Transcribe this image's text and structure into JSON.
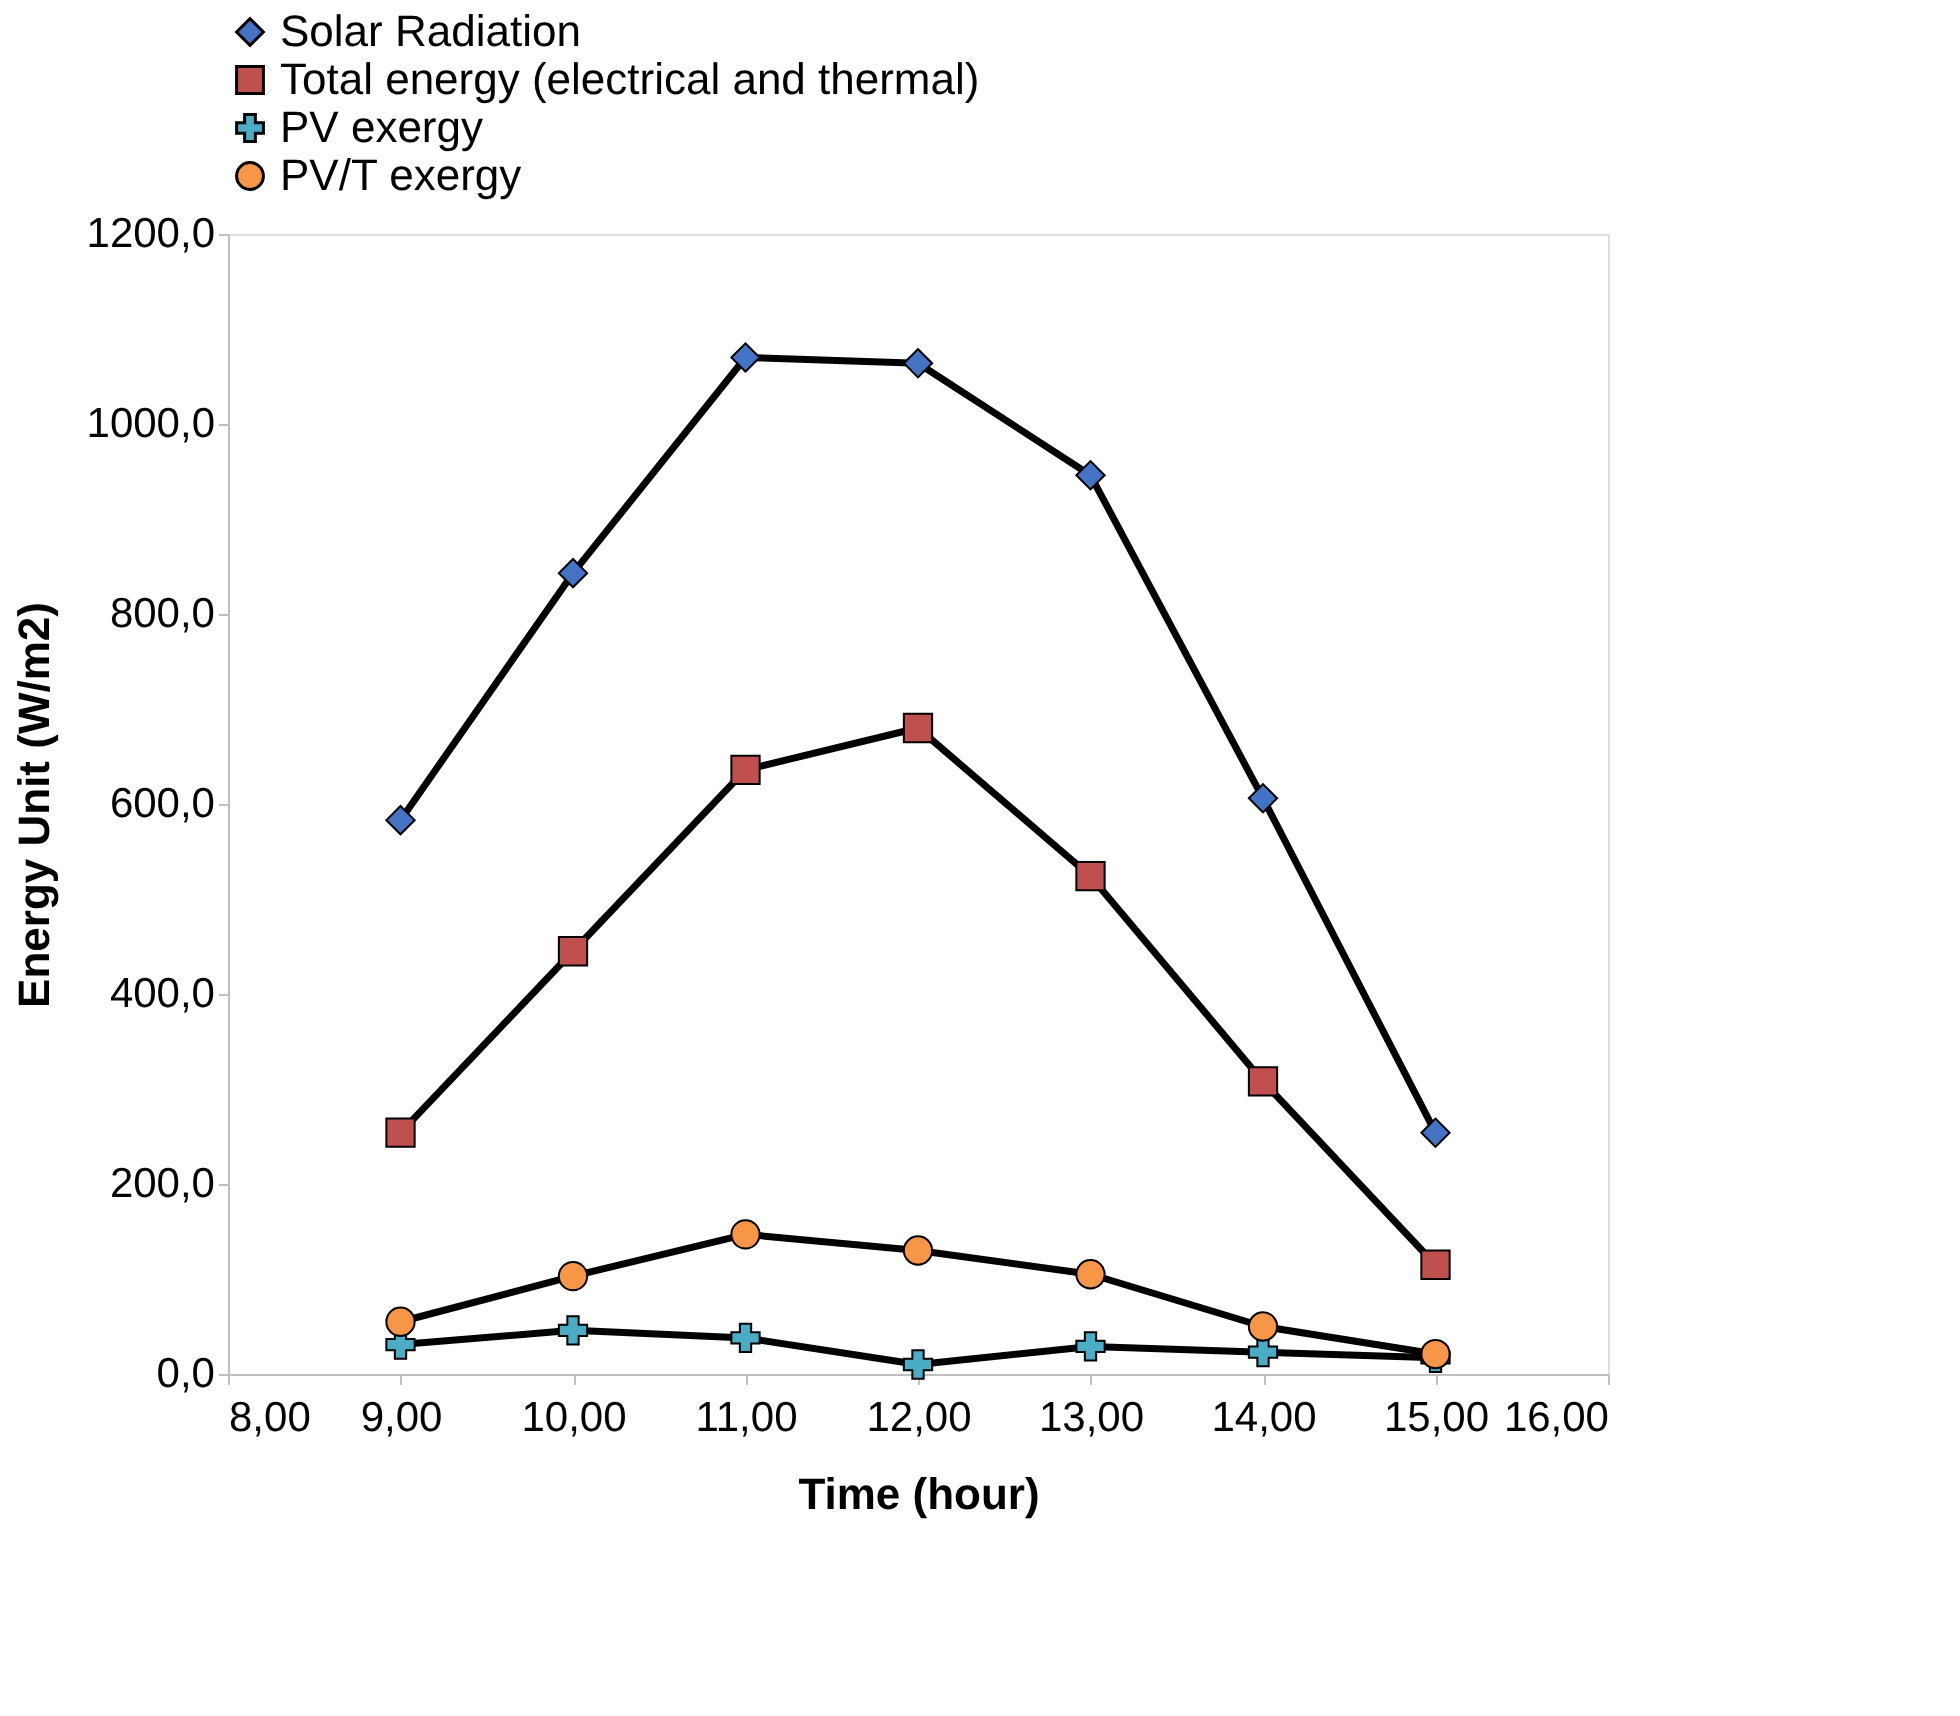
{
  "chart_data": {
    "type": "line",
    "xlabel": "Time (hour)",
    "ylabel": "Energy Unit (W/m2)",
    "x": [
      9,
      10,
      11,
      12,
      13,
      14,
      15
    ],
    "series": [
      {
        "name": "Solar Radiation",
        "color": "#4472c4",
        "marker": "diamond",
        "values": [
          583,
          843,
          1070,
          1064,
          946,
          606,
          254
        ]
      },
      {
        "name": "Total energy (electrical and thermal)",
        "color": "#c0504d",
        "marker": "square",
        "values": [
          254,
          445,
          636,
          680,
          524,
          308,
          115
        ]
      },
      {
        "name": "PV exergy",
        "color": "#4bacc6",
        "marker": "cross",
        "values": [
          31,
          46,
          38,
          10,
          29,
          23,
          17
        ]
      },
      {
        "name": "PV/T exergy",
        "color": "#f79646",
        "marker": "circle",
        "values": [
          55,
          103,
          147,
          130,
          105,
          50,
          21
        ]
      }
    ],
    "xlim": [
      8,
      16
    ],
    "xticks": [
      {
        "value": 8,
        "label": "8,00"
      },
      {
        "value": 9,
        "label": "9,00"
      },
      {
        "value": 10,
        "label": "10,00"
      },
      {
        "value": 11,
        "label": "11,00"
      },
      {
        "value": 12,
        "label": "12,00"
      },
      {
        "value": 13,
        "label": "13,00"
      },
      {
        "value": 14,
        "label": "14,00"
      },
      {
        "value": 15,
        "label": "15,00"
      },
      {
        "value": 16,
        "label": "16,00"
      }
    ],
    "ylim": [
      0,
      1200
    ],
    "yticks": [
      {
        "value": 0,
        "label": "0,0"
      },
      {
        "value": 200,
        "label": "200,0"
      },
      {
        "value": 400,
        "label": "400,0"
      },
      {
        "value": 600,
        "label": "600,0"
      },
      {
        "value": 800,
        "label": "800,0"
      },
      {
        "value": 1000,
        "label": "1000,0"
      },
      {
        "value": 1200,
        "label": "1200,0"
      }
    ],
    "grid": false,
    "legend": "top",
    "line_style": "solid"
  }
}
